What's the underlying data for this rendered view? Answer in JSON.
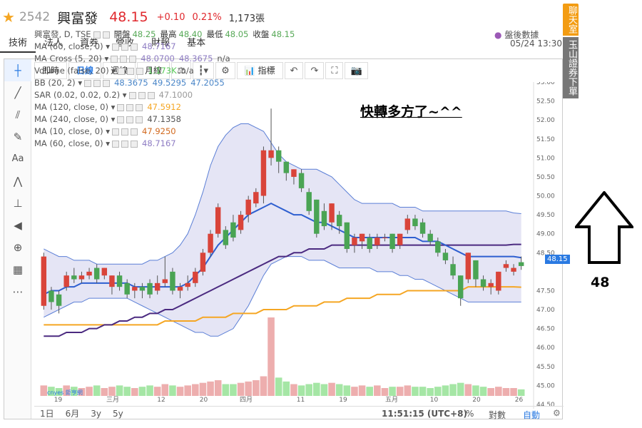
{
  "header": {
    "star": "★",
    "code": "2542",
    "name": "興富發",
    "price": "48.15",
    "change": "+0.10",
    "percent": "0.21%",
    "volume": "1,173張"
  },
  "tabs": [
    "技術",
    "法人",
    "資券",
    "營收",
    "財報",
    "基本"
  ],
  "date": "05/24 13:30",
  "right_bar": {
    "chat": "聊天室",
    "download": "玉山證券下單"
  },
  "toolbar": {
    "buttons": [
      "即時",
      "日線",
      "週線",
      "月線"
    ],
    "active": "日線",
    "indicators": "指標"
  },
  "legend": {
    "title": "興富發, D, TSE",
    "ohlc": {
      "open_label": "開盤",
      "open": "48.25",
      "high_label": "最高",
      "high": "48.40",
      "low_label": "最低",
      "low": "48.05",
      "close_label": "收盤",
      "close": "48.15"
    },
    "rows": [
      {
        "label": "MA (60, close, 0)",
        "value": "48.7167",
        "color": "#8e7cc3"
      },
      {
        "label": "MA Cross (5, 20)",
        "value": "48.0700",
        "value2": "48.3675",
        "value3": "n/a",
        "color": "#8e7cc3"
      },
      {
        "label": "Volume (false, 20)",
        "value": "1.173K",
        "value2": "n/a",
        "color": "#57c957"
      },
      {
        "label": "BB (20, 2)",
        "value": "48.3675",
        "value2": "49.5295",
        "value3": "47.2055",
        "color": "#4a86c8"
      },
      {
        "label": "SAR (0.02, 0.02, 0.2)",
        "value": "47.1000",
        "color": "#999999"
      },
      {
        "label": "MA (120, close, 0)",
        "value": "47.5912",
        "color": "#f5a623"
      },
      {
        "label": "MA (240, close, 0)",
        "value": "47.1358",
        "color": "#555555"
      },
      {
        "label": "MA (10, close, 0)",
        "value": "47.9250",
        "color": "#d2691e"
      },
      {
        "label": "MA (60, close, 0)",
        "value": "48.7167",
        "color": "#8e7cc3"
      }
    ]
  },
  "after_hours": "盤後數據",
  "note": "快轉多方了~^^",
  "last_price_tag": "48.15",
  "annotation_value": "48",
  "bottom": {
    "ranges": [
      "1日",
      "6月",
      "3y",
      "5y"
    ],
    "time": "11:51:15 (UTC+8)",
    "percent": "%",
    "log": "對數",
    "auto": "自動"
  },
  "source_logo": "cnyes 鉅亨網",
  "chart_data": {
    "type": "candlestick",
    "ylim": [
      44.5,
      53.0
    ],
    "y_ticks": [
      "53.00",
      "52.50",
      "52.00",
      "51.50",
      "51.00",
      "50.50",
      "50.00",
      "49.50",
      "49.00",
      "48.50",
      "48.15",
      "47.50",
      "47.00",
      "46.50",
      "46.00",
      "45.50",
      "45.00",
      "44.50"
    ],
    "x_ticks": [
      "19",
      "三月",
      "12",
      "20",
      "四月",
      "11",
      "19",
      "五月",
      "10",
      "20",
      "26"
    ],
    "candles": [
      {
        "o": 47.1,
        "c": 48.4,
        "h": 48.5,
        "l": 47.0
      },
      {
        "o": 47.5,
        "c": 47.2,
        "h": 47.6,
        "l": 47.0
      },
      {
        "o": 47.4,
        "c": 47.1,
        "h": 47.5,
        "l": 46.9
      },
      {
        "o": 47.6,
        "c": 47.9,
        "h": 48.0,
        "l": 47.5
      },
      {
        "o": 47.9,
        "c": 47.8,
        "h": 48.1,
        "l": 47.7
      },
      {
        "o": 47.8,
        "c": 47.9,
        "h": 48.0,
        "l": 47.7
      },
      {
        "o": 47.9,
        "c": 48.0,
        "h": 48.1,
        "l": 47.8
      },
      {
        "o": 48.1,
        "c": 47.8,
        "h": 48.2,
        "l": 47.7
      },
      {
        "o": 47.9,
        "c": 48.1,
        "h": 48.1,
        "l": 47.8
      },
      {
        "o": 47.6,
        "c": 47.9,
        "h": 47.9,
        "l": 47.4
      },
      {
        "o": 47.9,
        "c": 47.6,
        "h": 48.0,
        "l": 47.5
      },
      {
        "o": 47.7,
        "c": 47.4,
        "h": 47.8,
        "l": 47.3
      },
      {
        "o": 47.5,
        "c": 47.6,
        "h": 47.7,
        "l": 47.3
      },
      {
        "o": 47.6,
        "c": 47.5,
        "h": 47.7,
        "l": 47.3
      },
      {
        "o": 47.7,
        "c": 47.4,
        "h": 47.8,
        "l": 47.3
      },
      {
        "o": 47.5,
        "c": 47.7,
        "h": 47.9,
        "l": 47.4
      },
      {
        "o": 47.7,
        "c": 47.8,
        "h": 48.4,
        "l": 47.6
      },
      {
        "o": 48.0,
        "c": 47.5,
        "h": 48.1,
        "l": 47.4
      },
      {
        "o": 47.5,
        "c": 47.6,
        "h": 47.7,
        "l": 47.3
      },
      {
        "o": 47.6,
        "c": 47.7,
        "h": 47.9,
        "l": 47.5
      },
      {
        "o": 47.7,
        "c": 48.0,
        "h": 48.1,
        "l": 47.6
      },
      {
        "o": 48.0,
        "c": 48.5,
        "h": 48.6,
        "l": 47.9
      },
      {
        "o": 48.5,
        "c": 49.0,
        "h": 49.1,
        "l": 48.4
      },
      {
        "o": 49.0,
        "c": 49.7,
        "h": 49.8,
        "l": 48.9
      },
      {
        "o": 49.1,
        "c": 48.7,
        "h": 49.2,
        "l": 48.6
      },
      {
        "o": 49.3,
        "c": 48.9,
        "h": 49.5,
        "l": 48.8
      },
      {
        "o": 49.1,
        "c": 49.5,
        "h": 49.6,
        "l": 49.0
      },
      {
        "o": 49.5,
        "c": 49.9,
        "h": 50.0,
        "l": 49.3
      },
      {
        "o": 49.8,
        "c": 50.1,
        "h": 50.2,
        "l": 49.7
      },
      {
        "o": 50.0,
        "c": 51.2,
        "h": 51.3,
        "l": 49.8
      },
      {
        "o": 51.0,
        "c": 51.2,
        "h": 52.3,
        "l": 50.8
      },
      {
        "o": 51.2,
        "c": 50.9,
        "h": 51.3,
        "l": 50.6
      },
      {
        "o": 50.9,
        "c": 50.6,
        "h": 50.9,
        "l": 50.4
      },
      {
        "o": 50.5,
        "c": 50.7,
        "h": 50.7,
        "l": 50.3
      },
      {
        "o": 50.6,
        "c": 50.2,
        "h": 50.7,
        "l": 50.1
      },
      {
        "o": 50.1,
        "c": 49.6,
        "h": 50.2,
        "l": 49.5
      },
      {
        "o": 49.9,
        "c": 49.0,
        "h": 49.9,
        "l": 48.9
      },
      {
        "o": 49.6,
        "c": 49.2,
        "h": 49.8,
        "l": 49.1
      },
      {
        "o": 49.3,
        "c": 49.8,
        "h": 49.8,
        "l": 49.1
      },
      {
        "o": 49.5,
        "c": 49.2,
        "h": 49.6,
        "l": 49.0
      },
      {
        "o": 49.3,
        "c": 48.6,
        "h": 49.3,
        "l": 48.5
      },
      {
        "o": 48.7,
        "c": 48.9,
        "h": 49.0,
        "l": 48.5
      },
      {
        "o": 48.8,
        "c": 49.0,
        "h": 49.0,
        "l": 48.6
      },
      {
        "o": 48.9,
        "c": 48.6,
        "h": 49.0,
        "l": 48.5
      },
      {
        "o": 48.7,
        "c": 48.9,
        "h": 49.0,
        "l": 48.6
      },
      {
        "o": 48.9,
        "c": 48.9,
        "h": 49.0,
        "l": 48.8
      },
      {
        "o": 49.0,
        "c": 48.6,
        "h": 49.0,
        "l": 48.5
      },
      {
        "o": 48.7,
        "c": 49.0,
        "h": 49.0,
        "l": 48.6
      },
      {
        "o": 49.1,
        "c": 49.4,
        "h": 49.5,
        "l": 49.0
      },
      {
        "o": 49.4,
        "c": 49.2,
        "h": 49.5,
        "l": 49.1
      },
      {
        "o": 49.3,
        "c": 49.0,
        "h": 49.4,
        "l": 48.9
      },
      {
        "o": 49.0,
        "c": 48.8,
        "h": 49.1,
        "l": 48.7
      },
      {
        "o": 48.8,
        "c": 48.5,
        "h": 48.9,
        "l": 48.4
      },
      {
        "o": 48.5,
        "c": 48.3,
        "h": 48.6,
        "l": 48.2
      },
      {
        "o": 48.2,
        "c": 47.9,
        "h": 48.4,
        "l": 47.8
      },
      {
        "o": 47.9,
        "c": 47.3,
        "h": 47.9,
        "l": 47.1
      },
      {
        "o": 47.8,
        "c": 48.5,
        "h": 48.5,
        "l": 47.7
      },
      {
        "o": 48.3,
        "c": 47.8,
        "h": 48.3,
        "l": 47.6
      },
      {
        "o": 47.8,
        "c": 47.6,
        "h": 47.9,
        "l": 47.5
      },
      {
        "o": 47.6,
        "c": 47.7,
        "h": 47.8,
        "l": 47.4
      },
      {
        "o": 47.5,
        "c": 48.0,
        "h": 48.0,
        "l": 47.4
      },
      {
        "o": 48.1,
        "c": 48.2,
        "h": 48.3,
        "l": 48.0
      },
      {
        "o": 48.0,
        "c": 48.1,
        "h": 48.2,
        "l": 47.9
      },
      {
        "o": 48.25,
        "c": 48.15,
        "h": 48.4,
        "l": 48.05
      }
    ],
    "volumes": [
      8,
      7,
      6,
      8,
      7,
      6,
      7,
      8,
      6,
      7,
      8,
      7,
      6,
      7,
      8,
      7,
      9,
      8,
      7,
      8,
      9,
      10,
      11,
      12,
      9,
      9,
      10,
      11,
      12,
      15,
      60,
      14,
      11,
      9,
      8,
      9,
      10,
      9,
      10,
      9,
      8,
      7,
      8,
      7,
      8,
      6,
      7,
      7,
      8,
      7,
      7,
      6,
      7,
      8,
      9,
      10,
      9,
      8,
      7,
      6,
      7,
      6,
      6,
      5
    ],
    "bb_upper": [
      48.6,
      48.5,
      48.4,
      48.4,
      48.3,
      48.3,
      48.3,
      48.2,
      48.2,
      48.2,
      48.2,
      48.2,
      48.2,
      48.2,
      48.3,
      48.3,
      48.4,
      48.5,
      48.7,
      49.0,
      49.5,
      50.1,
      50.8,
      51.3,
      51.6,
      51.8,
      51.9,
      51.9,
      51.8,
      51.7,
      51.4,
      51.1,
      50.9,
      50.8,
      50.7,
      50.7,
      50.7,
      50.6,
      50.5,
      50.3,
      50.1,
      49.9,
      49.8,
      49.8,
      49.8,
      49.8,
      49.8,
      49.7,
      49.7,
      49.7,
      49.6,
      49.6,
      49.6,
      49.6,
      49.6,
      49.6,
      49.6,
      49.6,
      49.6,
      49.6,
      49.6,
      49.6,
      49.55,
      49.53
    ],
    "bb_lower": [
      46.8,
      46.9,
      47.0,
      47.1,
      47.2,
      47.2,
      47.3,
      47.3,
      47.3,
      47.3,
      47.3,
      47.3,
      47.2,
      47.1,
      47.0,
      46.9,
      46.8,
      46.7,
      46.6,
      46.5,
      46.4,
      46.4,
      46.3,
      46.3,
      46.4,
      46.5,
      46.8,
      47.1,
      47.5,
      47.9,
      48.2,
      48.3,
      48.4,
      48.4,
      48.4,
      48.3,
      48.3,
      48.3,
      48.2,
      48.1,
      48.1,
      48.1,
      48.1,
      48.1,
      48.0,
      48.0,
      48.0,
      47.9,
      47.9,
      47.8,
      47.8,
      47.7,
      47.6,
      47.5,
      47.4,
      47.3,
      47.2,
      47.2,
      47.2,
      47.2,
      47.2,
      47.2,
      47.2,
      47.2
    ],
    "ma_mid": [
      47.4,
      47.5,
      47.5,
      47.6,
      47.6,
      47.7,
      47.7,
      47.7,
      47.7,
      47.7,
      47.7,
      47.7,
      47.6,
      47.6,
      47.6,
      47.6,
      47.6,
      47.6,
      47.6,
      47.7,
      47.9,
      48.1,
      48.4,
      48.7,
      48.9,
      49.1,
      49.3,
      49.5,
      49.6,
      49.7,
      49.8,
      49.7,
      49.6,
      49.5,
      49.5,
      49.4,
      49.3,
      49.3,
      49.2,
      49.1,
      49.0,
      48.9,
      48.9,
      48.9,
      48.9,
      48.9,
      48.9,
      48.9,
      48.9,
      48.9,
      48.8,
      48.8,
      48.8,
      48.7,
      48.6,
      48.5,
      48.4,
      48.4,
      48.4,
      48.4,
      48.4,
      48.4,
      48.4,
      48.37
    ],
    "ma60": [
      46.3,
      46.3,
      46.3,
      46.4,
      46.4,
      46.4,
      46.5,
      46.5,
      46.6,
      46.6,
      46.7,
      46.7,
      46.8,
      46.8,
      46.9,
      46.9,
      47.0,
      47.0,
      47.1,
      47.2,
      47.3,
      47.4,
      47.5,
      47.6,
      47.7,
      47.8,
      47.9,
      48.0,
      48.1,
      48.2,
      48.3,
      48.4,
      48.4,
      48.5,
      48.5,
      48.6,
      48.6,
      48.6,
      48.7,
      48.7,
      48.7,
      48.7,
      48.7,
      48.7,
      48.7,
      48.7,
      48.7,
      48.7,
      48.7,
      48.7,
      48.7,
      48.7,
      48.7,
      48.7,
      48.7,
      48.7,
      48.7,
      48.7,
      48.7,
      48.7,
      48.7,
      48.7,
      48.72,
      48.72
    ],
    "ma120": [
      46.6,
      46.6,
      46.6,
      46.6,
      46.6,
      46.6,
      46.6,
      46.6,
      46.6,
      46.6,
      46.6,
      46.6,
      46.6,
      46.6,
      46.6,
      46.6,
      46.7,
      46.7,
      46.7,
      46.7,
      46.7,
      46.8,
      46.8,
      46.8,
      46.8,
      46.9,
      46.9,
      46.9,
      46.9,
      47.0,
      47.0,
      47.0,
      47.0,
      47.1,
      47.1,
      47.1,
      47.1,
      47.2,
      47.2,
      47.2,
      47.3,
      47.3,
      47.3,
      47.3,
      47.4,
      47.4,
      47.4,
      47.4,
      47.5,
      47.5,
      47.5,
      47.5,
      47.5,
      47.5,
      47.5,
      47.5,
      47.6,
      47.6,
      47.6,
      47.6,
      47.6,
      47.6,
      47.6,
      47.59
    ]
  }
}
